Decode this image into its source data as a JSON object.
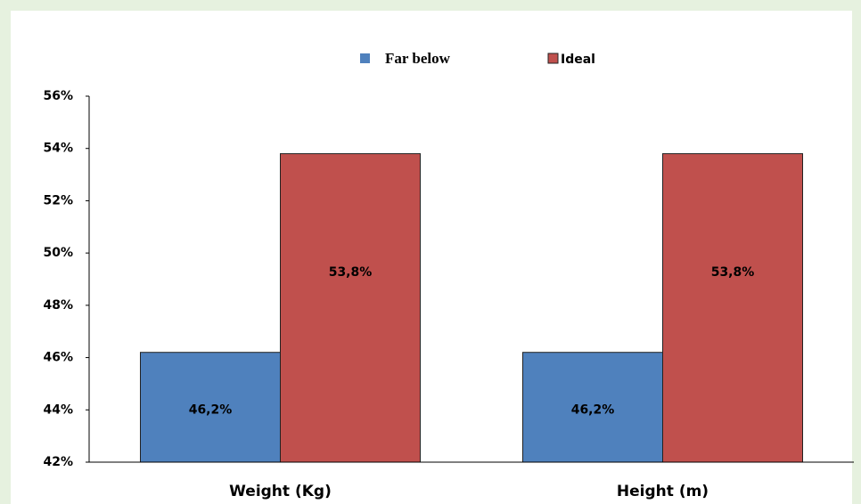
{
  "chart_data": {
    "type": "bar",
    "categories": [
      "Weight (Kg)",
      "Height (m)"
    ],
    "series": [
      {
        "name": "Far below",
        "color": "#4f81bd",
        "values": [
          46.2,
          46.2
        ],
        "value_labels": [
          "46,2%",
          "46,2%"
        ]
      },
      {
        "name": "Ideal",
        "color": "#c0504d",
        "values": [
          53.8,
          53.8
        ],
        "value_labels": [
          "53,8%",
          "53,8%"
        ]
      }
    ],
    "ylim": [
      42,
      56
    ],
    "yticks": [
      {
        "value": 42,
        "label": "42%"
      },
      {
        "value": 44,
        "label": "44%"
      },
      {
        "value": 46,
        "label": "46%"
      },
      {
        "value": 48,
        "label": "48%"
      },
      {
        "value": 50,
        "label": "50%"
      },
      {
        "value": 52,
        "label": "52%"
      },
      {
        "value": 54,
        "label": "54%"
      },
      {
        "value": 56,
        "label": "56%"
      }
    ],
    "grid": false,
    "legend": "top"
  }
}
